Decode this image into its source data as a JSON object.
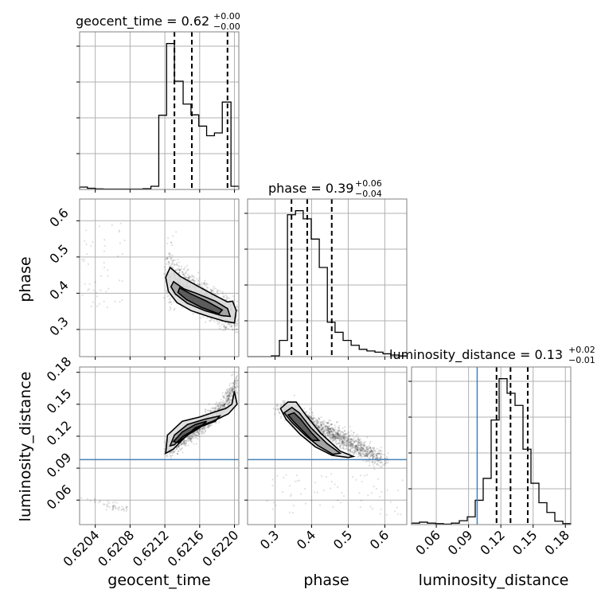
{
  "chart_data": {
    "type": "corner",
    "parameters": [
      "geocent_time",
      "phase",
      "luminosity_distance"
    ],
    "axis_labels": {
      "geocent_time": "geocent_time",
      "phase": "phase",
      "luminosity_distance": "luminosity_distance"
    },
    "ranges": {
      "geocent_time": [
        0.62022,
        0.62205
      ],
      "phase": [
        0.225,
        0.66
      ],
      "luminosity_distance": [
        0.037,
        0.185
      ]
    },
    "ticks": {
      "geocent_time": [
        0.6204,
        0.6208,
        0.6212,
        0.6216,
        0.622
      ],
      "geocent_time_labels": [
        "0.6204",
        "0.6208",
        "0.6212",
        "0.6216",
        "0.6220"
      ],
      "phase": [
        0.3,
        0.4,
        0.5,
        0.6
      ],
      "phase_labels": [
        "0.3",
        "0.4",
        "0.5",
        "0.6"
      ],
      "luminosity_distance": [
        0.06,
        0.09,
        0.12,
        0.15,
        0.18
      ],
      "luminosity_distance_labels": [
        "0.06",
        "0.09",
        "0.12",
        "0.15",
        "0.18"
      ]
    },
    "titles": {
      "geocent_time": {
        "text": "geocent_time = 0.62",
        "plus": "+0.00",
        "minus": "−0.00"
      },
      "phase": {
        "text": "phase = 0.39",
        "plus": "+0.06",
        "minus": "−0.04"
      },
      "luminosity_distance": {
        "text": "luminosity_distance = 0.13",
        "plus": "+0.02",
        "minus": "−0.01"
      }
    },
    "quantiles": {
      "geocent_time": [
        0.62131,
        0.62151,
        0.62192
      ],
      "phase": [
        0.345,
        0.388,
        0.455
      ],
      "luminosity_distance": [
        0.116,
        0.129,
        0.145
      ]
    },
    "truths": {
      "luminosity_distance": 0.098
    },
    "histograms": {
      "geocent_time": {
        "edges": [
          0.62022,
          0.62031,
          0.6204,
          0.62049,
          0.62058,
          0.62068,
          0.62077,
          0.62086,
          0.62095,
          0.62104,
          0.62113,
          0.62122,
          0.62131,
          0.62141,
          0.6215,
          0.62159,
          0.62168,
          0.62177,
          0.62186,
          0.62196,
          0.62205
        ],
        "counts": [
          0.6,
          0.3,
          0.15,
          0.1,
          0.1,
          0.1,
          0.1,
          0.1,
          0.2,
          0.8,
          18.5,
          36.4,
          27.0,
          21.3,
          18.6,
          15.8,
          13.4,
          14.1,
          21.8,
          0.8
        ]
      },
      "phase": {
        "edges": [
          0.225,
          0.247,
          0.268,
          0.29,
          0.312,
          0.334,
          0.356,
          0.377,
          0.399,
          0.421,
          0.443,
          0.464,
          0.486,
          0.508,
          0.53,
          0.551,
          0.573,
          0.595,
          0.616,
          0.638,
          0.66
        ],
        "counts": [
          0,
          0,
          0,
          0.2,
          4.0,
          35.0,
          36.0,
          34.0,
          29.0,
          22.0,
          8.5,
          6.0,
          4.0,
          2.8,
          1.8,
          1.4,
          1.1,
          0.7,
          0.4,
          0.2
        ]
      },
      "luminosity_distance": {
        "edges": [
          0.037,
          0.0444,
          0.0518,
          0.0592,
          0.0666,
          0.074,
          0.0814,
          0.0888,
          0.0962,
          0.1036,
          0.111,
          0.1184,
          0.1258,
          0.1332,
          0.1406,
          0.148,
          0.1554,
          0.1628,
          0.1702,
          0.1776,
          0.185
        ],
        "counts": [
          0.3,
          0.5,
          0.3,
          0.2,
          0.1,
          0.3,
          0.8,
          1.6,
          5.0,
          9.5,
          21.5,
          30.0,
          27.0,
          24.5,
          15.5,
          8.5,
          4.5,
          2.5,
          0.7,
          0.2
        ]
      }
    },
    "contours": {
      "phase_vs_geocent_time": {
        "x_param": "geocent_time",
        "y_param": "phase",
        "levels": [
          [
            [
              0.62126,
              0.471
            ],
            [
              0.62138,
              0.446
            ],
            [
              0.62156,
              0.422
            ],
            [
              0.62175,
              0.397
            ],
            [
              0.62192,
              0.376
            ],
            [
              0.62198,
              0.378
            ],
            [
              0.62202,
              0.352
            ],
            [
              0.622,
              0.318
            ],
            [
              0.62188,
              0.323
            ],
            [
              0.6217,
              0.336
            ],
            [
              0.6215,
              0.352
            ],
            [
              0.62134,
              0.374
            ],
            [
              0.62124,
              0.405
            ],
            [
              0.62121,
              0.444
            ]
          ],
          [
            [
              0.6213,
              0.432
            ],
            [
              0.62142,
              0.412
            ],
            [
              0.62158,
              0.398
            ],
            [
              0.62178,
              0.378
            ],
            [
              0.62192,
              0.358
            ],
            [
              0.62195,
              0.336
            ],
            [
              0.62186,
              0.338
            ],
            [
              0.62166,
              0.352
            ],
            [
              0.62146,
              0.372
            ],
            [
              0.62132,
              0.398
            ],
            [
              0.62127,
              0.418
            ]
          ],
          [
            [
              0.62137,
              0.415
            ],
            [
              0.6215,
              0.398
            ],
            [
              0.62168,
              0.378
            ],
            [
              0.62186,
              0.354
            ],
            [
              0.62182,
              0.343
            ],
            [
              0.62162,
              0.361
            ],
            [
              0.62145,
              0.382
            ],
            [
              0.62135,
              0.402
            ]
          ]
        ]
      },
      "luminosity_distance_vs_geocent_time": {
        "x_param": "geocent_time",
        "y_param": "luminosity_distance",
        "levels": [
          [
            [
              0.62121,
              0.104
            ],
            [
              0.62123,
              0.121
            ],
            [
              0.6214,
              0.134
            ],
            [
              0.6216,
              0.138
            ],
            [
              0.62178,
              0.143
            ],
            [
              0.6219,
              0.146
            ],
            [
              0.62197,
              0.15
            ],
            [
              0.622,
              0.162
            ],
            [
              0.62203,
              0.15
            ],
            [
              0.62193,
              0.141
            ],
            [
              0.62175,
              0.134
            ],
            [
              0.62155,
              0.128
            ],
            [
              0.62142,
              0.118
            ],
            [
              0.6213,
              0.108
            ]
          ],
          [
            [
              0.62126,
              0.111
            ],
            [
              0.62131,
              0.121
            ],
            [
              0.62146,
              0.131
            ],
            [
              0.62166,
              0.136
            ],
            [
              0.62183,
              0.139
            ],
            [
              0.62178,
              0.134
            ],
            [
              0.62158,
              0.128
            ],
            [
              0.62141,
              0.12
            ],
            [
              0.62131,
              0.112
            ]
          ],
          [
            [
              0.6213,
              0.115
            ],
            [
              0.6214,
              0.124
            ],
            [
              0.62155,
              0.131
            ],
            [
              0.62168,
              0.134
            ],
            [
              0.6216,
              0.128
            ],
            [
              0.62146,
              0.121
            ],
            [
              0.62135,
              0.114
            ]
          ]
        ]
      },
      "luminosity_distance_vs_phase": {
        "x_param": "phase",
        "y_param": "luminosity_distance",
        "levels": [
          [
            [
              0.315,
              0.146
            ],
            [
              0.335,
              0.152
            ],
            [
              0.358,
              0.152
            ],
            [
              0.384,
              0.14
            ],
            [
              0.424,
              0.123
            ],
            [
              0.478,
              0.106
            ],
            [
              0.514,
              0.101
            ],
            [
              0.5,
              0.1
            ],
            [
              0.456,
              0.102
            ],
            [
              0.41,
              0.11
            ],
            [
              0.368,
              0.122
            ],
            [
              0.33,
              0.136
            ]
          ],
          [
            [
              0.325,
              0.142
            ],
            [
              0.346,
              0.147
            ],
            [
              0.366,
              0.142
            ],
            [
              0.398,
              0.128
            ],
            [
              0.442,
              0.113
            ],
            [
              0.478,
              0.104
            ],
            [
              0.458,
              0.103
            ],
            [
              0.418,
              0.111
            ],
            [
              0.382,
              0.121
            ],
            [
              0.346,
              0.133
            ]
          ],
          [
            [
              0.336,
              0.14
            ],
            [
              0.352,
              0.142
            ],
            [
              0.37,
              0.136
            ],
            [
              0.4,
              0.123
            ],
            [
              0.42,
              0.116
            ],
            [
              0.402,
              0.116
            ],
            [
              0.376,
              0.125
            ],
            [
              0.35,
              0.134
            ]
          ]
        ]
      }
    }
  }
}
